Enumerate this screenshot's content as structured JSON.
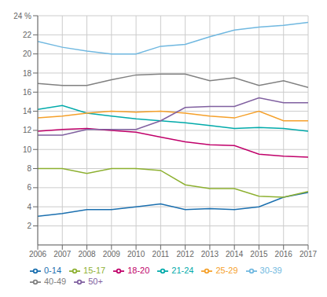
{
  "chart_data": {
    "type": "line",
    "x": [
      2006,
      2007,
      2008,
      2009,
      2010,
      2011,
      2012,
      2013,
      2014,
      2015,
      2016,
      2017
    ],
    "series": [
      {
        "name": "0-14",
        "color": "#1a6faf",
        "values": [
          3.0,
          3.3,
          3.7,
          3.7,
          4.0,
          4.3,
          3.7,
          3.8,
          3.7,
          4.0,
          5.0,
          5.5
        ]
      },
      {
        "name": "15-17",
        "color": "#8db030",
        "values": [
          8.0,
          8.0,
          7.5,
          8.0,
          8.0,
          7.8,
          6.3,
          5.9,
          5.9,
          5.1,
          5.0,
          5.6
        ]
      },
      {
        "name": "18-20",
        "color": "#c0006a",
        "values": [
          11.9,
          12.1,
          12.2,
          12.0,
          11.8,
          11.3,
          10.8,
          10.5,
          10.4,
          9.5,
          9.3,
          9.2
        ]
      },
      {
        "name": "21-24",
        "color": "#00aaaa",
        "values": [
          14.2,
          14.6,
          13.8,
          13.5,
          13.2,
          13.0,
          12.8,
          12.5,
          12.2,
          12.3,
          12.2,
          11.9
        ]
      },
      {
        "name": "25-29",
        "color": "#f5a02a",
        "values": [
          13.3,
          13.5,
          13.8,
          14.0,
          13.9,
          14.0,
          13.8,
          13.5,
          13.3,
          14.0,
          13.0,
          13.0
        ]
      },
      {
        "name": "30-39",
        "color": "#70b8e0",
        "values": [
          21.3,
          20.7,
          20.3,
          20.0,
          20.0,
          20.8,
          21.0,
          21.8,
          22.5,
          22.8,
          23.0,
          23.3
        ]
      },
      {
        "name": "40-49",
        "color": "#808080",
        "values": [
          16.9,
          16.7,
          16.7,
          17.3,
          17.8,
          17.9,
          17.9,
          17.2,
          17.5,
          16.7,
          17.2,
          16.5
        ]
      },
      {
        "name": "50+",
        "color": "#8060a0",
        "values": [
          11.5,
          11.5,
          12.1,
          12.1,
          12.1,
          13.0,
          14.4,
          14.5,
          14.5,
          15.4,
          14.9,
          14.9
        ]
      }
    ],
    "xlim": [
      2006,
      2017
    ],
    "xticks": [
      2006,
      2007,
      2008,
      2009,
      2010,
      2011,
      2012,
      2013,
      2014,
      2015,
      2016,
      2017
    ],
    "ylim": [
      0,
      24
    ],
    "yticks": [
      2,
      4,
      6,
      8,
      10,
      12,
      14,
      16,
      18,
      20,
      22,
      {
        "value": 24,
        "label": "24 %"
      }
    ],
    "grid": true,
    "legend": "lower left"
  }
}
